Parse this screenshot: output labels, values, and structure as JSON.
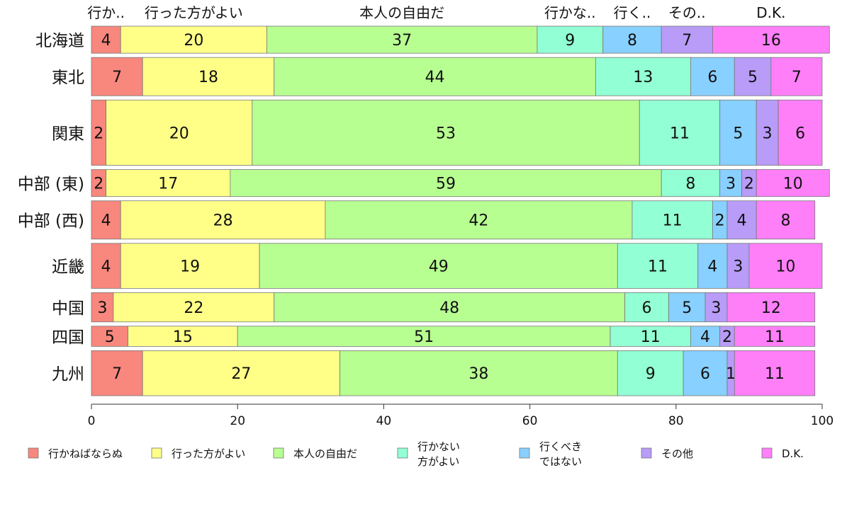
{
  "chart_data": {
    "type": "bar",
    "orientation": "horizontal",
    "stacked": true,
    "categories": [
      "北海道",
      "東北",
      "関東",
      "中部 (東)",
      "中部 (西)",
      "近畿",
      "中国",
      "四国",
      "九州"
    ],
    "series": [
      {
        "name": "行かねばならぬ",
        "top_label": "行か..",
        "color": "#f8877d",
        "values": [
          4,
          7,
          2,
          2,
          4,
          4,
          3,
          5,
          7
        ]
      },
      {
        "name": "行った方がよい",
        "top_label": "行った方がよい",
        "color": "#ffff88",
        "values": [
          20,
          18,
          20,
          17,
          28,
          19,
          22,
          15,
          27
        ]
      },
      {
        "name": "本人の自由だ",
        "top_label": "本人の自由だ",
        "color": "#b8ff92",
        "values": [
          37,
          44,
          53,
          59,
          42,
          49,
          48,
          51,
          38
        ]
      },
      {
        "name": "行かない方がよい",
        "legend_lines": [
          "行かない",
          "方がよい"
        ],
        "top_label": "行かな..",
        "color": "#92ffd4",
        "values": [
          9,
          13,
          11,
          8,
          11,
          11,
          6,
          11,
          9
        ]
      },
      {
        "name": "行くべきではない",
        "legend_lines": [
          "行くべき",
          "ではない"
        ],
        "top_label": "行く..",
        "color": "#88d0ff",
        "values": [
          8,
          6,
          5,
          3,
          2,
          4,
          5,
          4,
          6
        ]
      },
      {
        "name": "その他",
        "top_label": "その..",
        "color": "#b89cf8",
        "values": [
          7,
          5,
          3,
          2,
          4,
          3,
          3,
          2,
          1
        ]
      },
      {
        "name": "D.K.",
        "top_label": "D.K.",
        "color": "#ff7ff8",
        "values": [
          16,
          7,
          6,
          10,
          8,
          10,
          12,
          11,
          11
        ]
      }
    ],
    "bar_weights": [
      0.6,
      0.85,
      1.45,
      0.6,
      0.85,
      1.0,
      0.65,
      0.45,
      1.0
    ],
    "xlim": [
      0,
      100
    ],
    "xticks": [
      0,
      20,
      40,
      60,
      80,
      100
    ],
    "legend_position": "bottom",
    "grid": false
  }
}
